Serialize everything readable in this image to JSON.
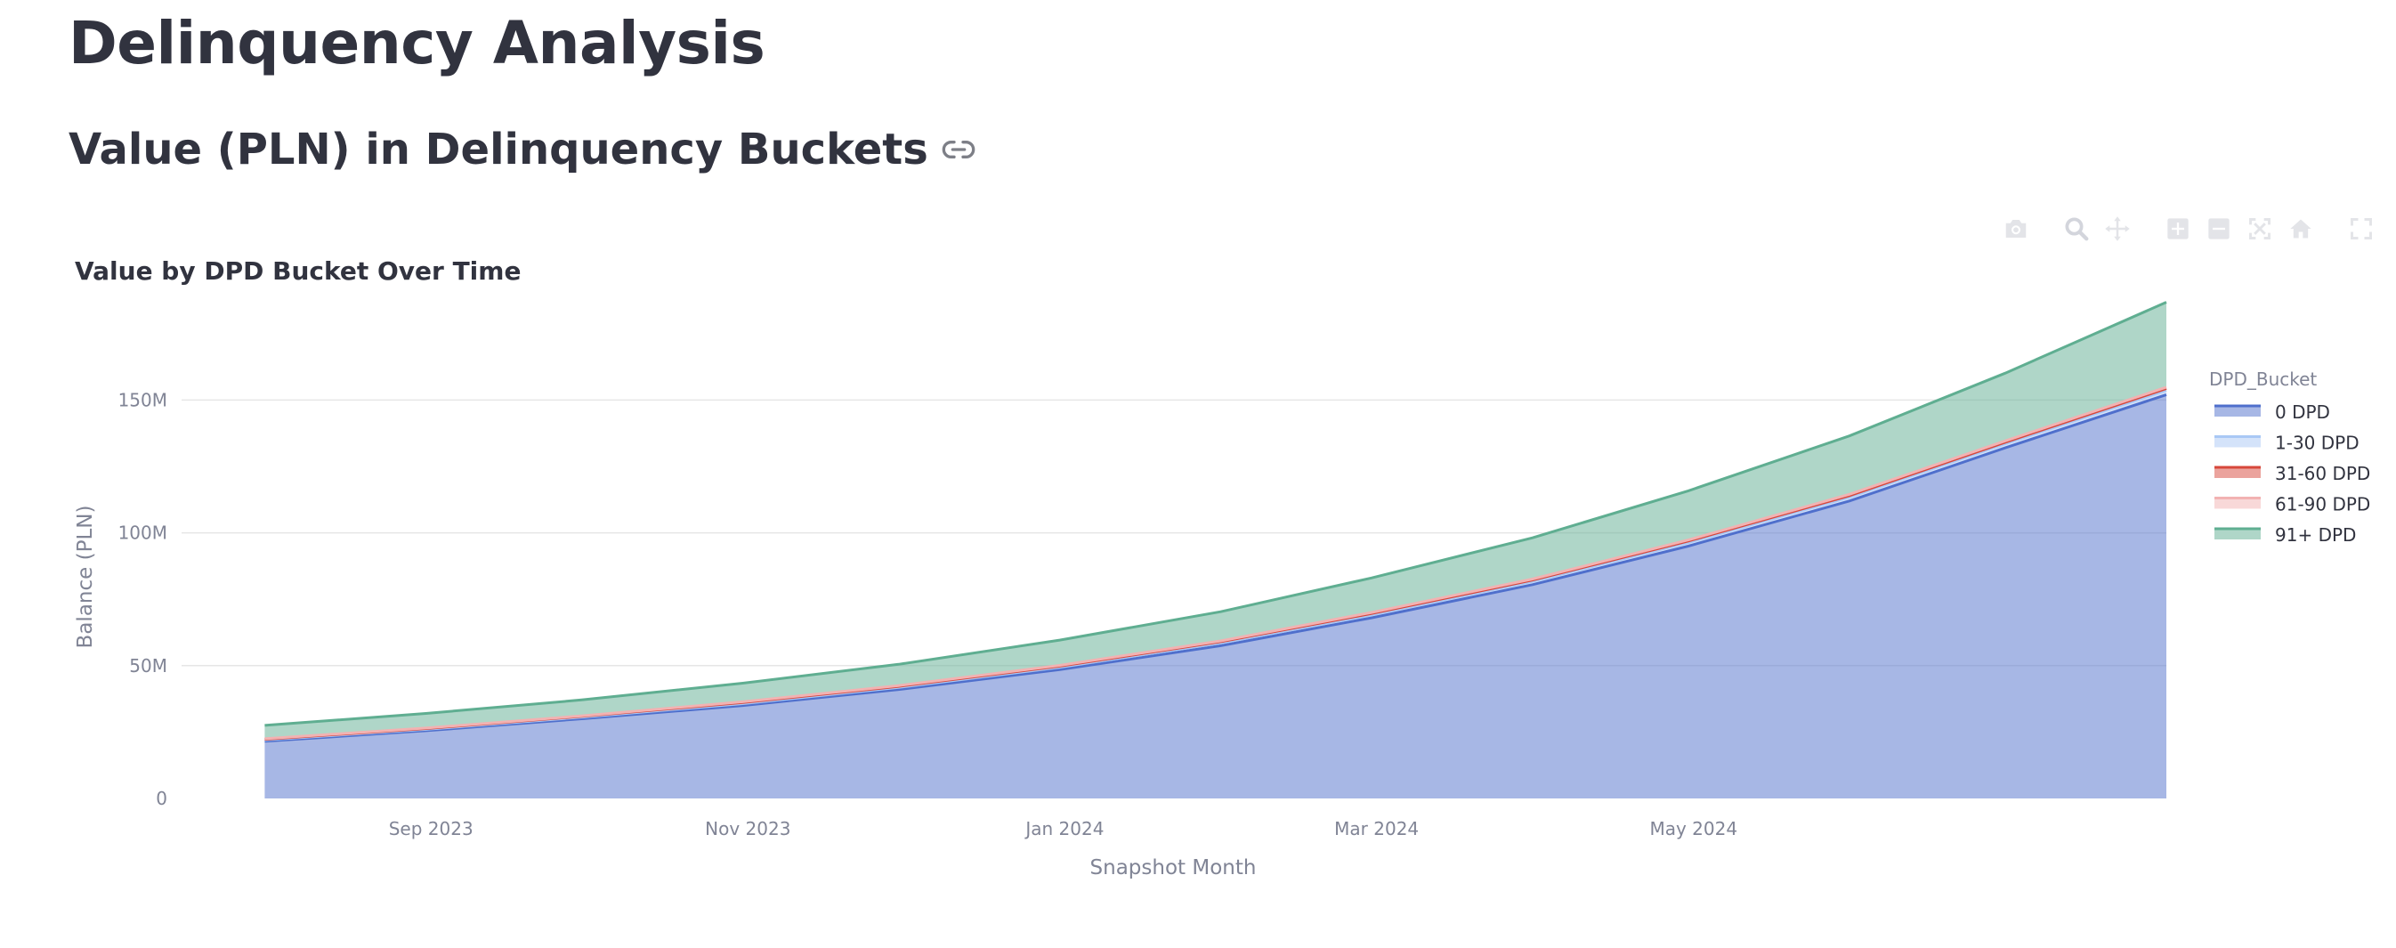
{
  "page": {
    "title": "Delinquency Analysis",
    "section_title": "Value (PLN) in Delinquency Buckets"
  },
  "icons": {
    "anchor_link": "link-icon",
    "modebar": [
      "camera-icon",
      "zoom-icon",
      "pan-icon",
      "zoom-in-icon",
      "zoom-out-icon",
      "autoscale-icon",
      "home-icon",
      "fullscreen-icon"
    ]
  },
  "colors": {
    "0 DPD": "#4f6fcc",
    "1-30 DPD": "#a9c8f5",
    "31-60 DPD": "#d7473b",
    "61-90 DPD": "#f2b2b2",
    "91+ DPD": "#5fae91"
  },
  "chart_data": {
    "type": "area",
    "stacked": true,
    "title": "Value by DPD Bucket Over Time",
    "xlabel": "Snapshot Month",
    "ylabel": "Balance (PLN)",
    "ylim": [
      0,
      190000000
    ],
    "y_ticks": [
      0,
      50000000,
      100000000,
      150000000
    ],
    "y_tick_labels": [
      "0",
      "50M",
      "100M",
      "150M"
    ],
    "x_ticks": [
      "2023-09-01",
      "2023-11-01",
      "2024-01-01",
      "2024-03-01",
      "2024-05-01"
    ],
    "x_tick_labels": [
      "Sep 2023",
      "Nov 2023",
      "Jan 2024",
      "Mar 2024",
      "May 2024"
    ],
    "x_range": [
      "2023-07-15",
      "2024-07-31"
    ],
    "grid": true,
    "legend_title": "DPD_Bucket",
    "legend_position": "right",
    "x": [
      "2023-07-31",
      "2023-08-31",
      "2023-09-30",
      "2023-10-31",
      "2023-11-30",
      "2023-12-31",
      "2024-01-31",
      "2024-02-29",
      "2024-03-31",
      "2024-04-30",
      "2024-05-31",
      "2024-06-30",
      "2024-07-31"
    ],
    "series": [
      {
        "name": "0 DPD",
        "values": [
          21500000,
          25500000,
          30000000,
          35000000,
          41000000,
          48500000,
          57500000,
          68000000,
          80500000,
          95000000,
          112000000,
          132000000,
          152000000
        ]
      },
      {
        "name": "1-30 DPD",
        "values": [
          500000,
          500000,
          600000,
          700000,
          800000,
          900000,
          1000000,
          1100000,
          1200000,
          1300000,
          1400000,
          1500000,
          1600000
        ]
      },
      {
        "name": "31-60 DPD",
        "values": [
          300000,
          300000,
          300000,
          400000,
          400000,
          400000,
          500000,
          500000,
          500000,
          600000,
          600000,
          600000,
          700000
        ]
      },
      {
        "name": "61-90 DPD",
        "values": [
          200000,
          200000,
          200000,
          300000,
          300000,
          300000,
          300000,
          400000,
          400000,
          400000,
          500000,
          500000,
          500000
        ]
      },
      {
        "name": "91+ DPD",
        "values": [
          5000000,
          5500000,
          6000000,
          7000000,
          8000000,
          9500000,
          11000000,
          13000000,
          15500000,
          18500000,
          22000000,
          25500000,
          32000000
        ]
      }
    ]
  }
}
